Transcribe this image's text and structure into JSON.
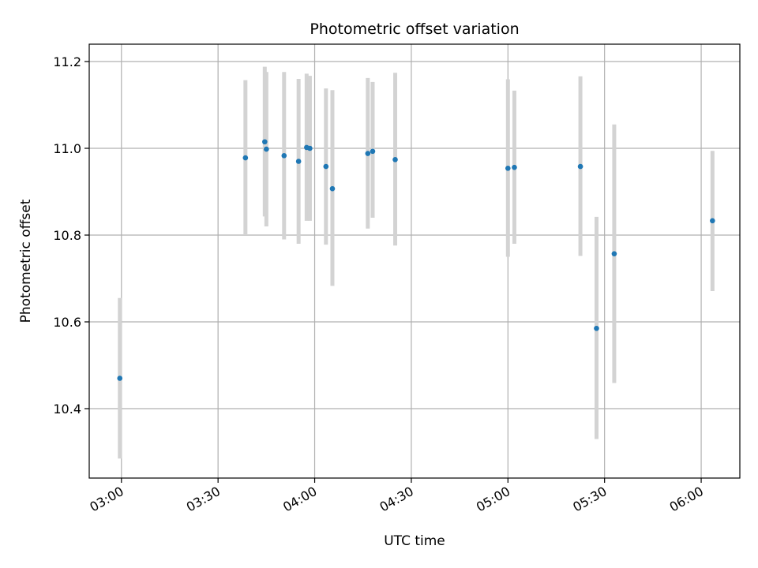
{
  "chart_data": {
    "type": "scatter",
    "title": "Photometric offset variation",
    "xlabel": "UTC time",
    "ylabel": "Photometric offset",
    "xlim": [
      "02:50",
      "06:12"
    ],
    "ylim": [
      10.24,
      11.24
    ],
    "xticks": [
      "03:00",
      "03:30",
      "04:00",
      "04:30",
      "05:00",
      "05:30",
      "06:00"
    ],
    "yticks": [
      10.4,
      10.6,
      10.8,
      11.0,
      11.2
    ],
    "grid": true,
    "point_color": "#1f77b4",
    "errorbar_color": "#d3d3d3",
    "points": [
      {
        "t": "02:59:30",
        "y": 10.47,
        "lo": 10.285,
        "hi": 10.655
      },
      {
        "t": "03:38:30",
        "y": 10.978,
        "lo": 10.8,
        "hi": 11.157
      },
      {
        "t": "03:44:30",
        "y": 11.015,
        "lo": 10.843,
        "hi": 11.188
      },
      {
        "t": "03:45:00",
        "y": 10.998,
        "lo": 10.82,
        "hi": 11.176
      },
      {
        "t": "03:50:30",
        "y": 10.983,
        "lo": 10.79,
        "hi": 11.176
      },
      {
        "t": "03:55:00",
        "y": 10.97,
        "lo": 10.78,
        "hi": 11.16
      },
      {
        "t": "03:57:30",
        "y": 11.002,
        "lo": 10.833,
        "hi": 11.172
      },
      {
        "t": "03:58:30",
        "y": 11.0,
        "lo": 10.833,
        "hi": 11.167
      },
      {
        "t": "04:03:30",
        "y": 10.958,
        "lo": 10.778,
        "hi": 11.138
      },
      {
        "t": "04:05:30",
        "y": 10.907,
        "lo": 10.683,
        "hi": 11.134
      },
      {
        "t": "04:16:30",
        "y": 10.988,
        "lo": 10.815,
        "hi": 11.162
      },
      {
        "t": "04:18:00",
        "y": 10.993,
        "lo": 10.84,
        "hi": 11.153
      },
      {
        "t": "04:25:00",
        "y": 10.974,
        "lo": 10.776,
        "hi": 11.174
      },
      {
        "t": "05:00:00",
        "y": 10.954,
        "lo": 10.75,
        "hi": 11.159
      },
      {
        "t": "05:02:00",
        "y": 10.956,
        "lo": 10.78,
        "hi": 11.133
      },
      {
        "t": "05:22:30",
        "y": 10.958,
        "lo": 10.752,
        "hi": 11.166
      },
      {
        "t": "05:27:30",
        "y": 10.585,
        "lo": 10.33,
        "hi": 10.842
      },
      {
        "t": "05:33:00",
        "y": 10.757,
        "lo": 10.459,
        "hi": 11.055
      },
      {
        "t": "06:03:30",
        "y": 10.833,
        "lo": 10.671,
        "hi": 10.994
      }
    ]
  }
}
